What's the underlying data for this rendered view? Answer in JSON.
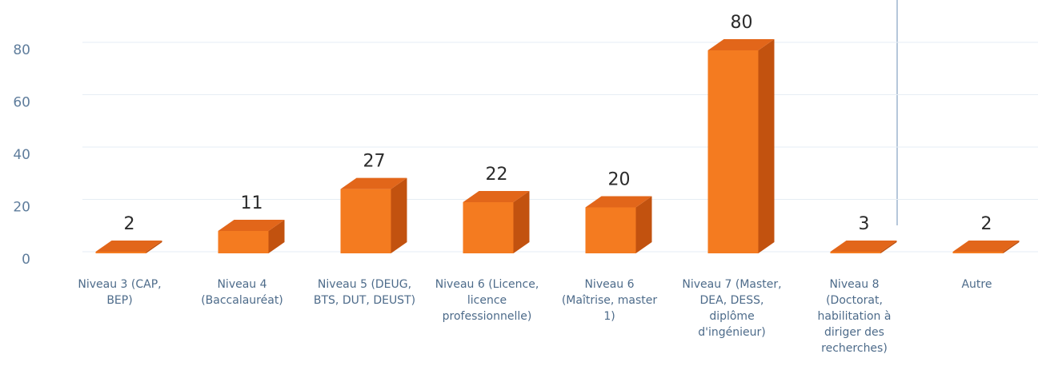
{
  "chart_data": {
    "type": "bar3d",
    "categories": [
      "Niveau 3 (CAP, BEP)",
      "Niveau 4 (Baccalauréat)",
      "Niveau 5 (DEUG, BTS, DUT, DEUST)",
      "Niveau 6 (Licence, licence professionnelle)",
      "Niveau 6 (Maîtrise, master 1)",
      "Niveau 7 (Master, DEA, DESS, diplôme d'ingénieur)",
      "Niveau 8 (Doctorat, habilitation à diriger des recherches)",
      "Autre"
    ],
    "values": [
      2,
      11,
      27,
      22,
      20,
      80,
      3,
      2
    ],
    "color": "#f47b20",
    "ylim": [
      0,
      100
    ],
    "yticks": [
      0,
      20,
      40,
      60,
      80
    ],
    "grid": true
  }
}
